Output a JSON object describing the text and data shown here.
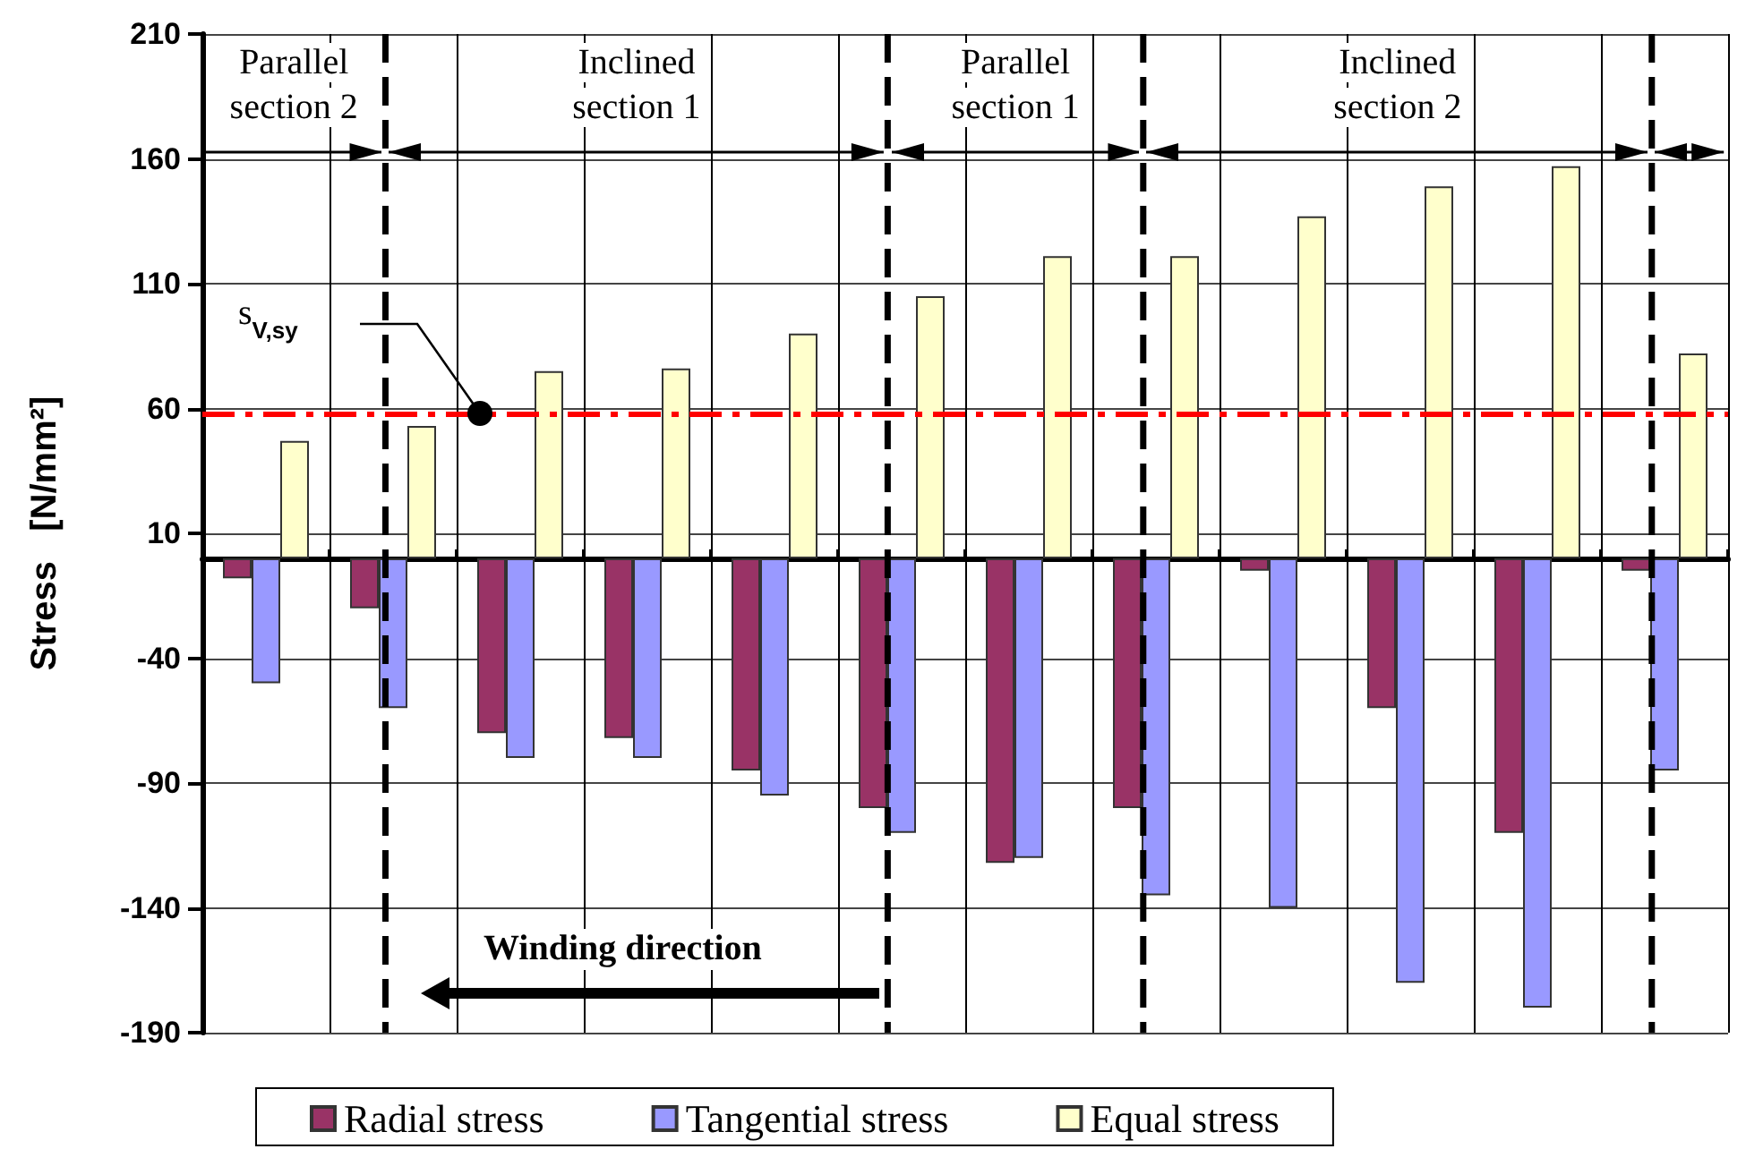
{
  "chart_data": {
    "type": "bar",
    "ylabel": "Stress   [N/mm²]",
    "categories": [
      null,
      null,
      null,
      null,
      null,
      null,
      null,
      null,
      null,
      null,
      null,
      null
    ],
    "ylim": [
      -190,
      210
    ],
    "yticks": [
      -190,
      -140,
      -90,
      -40,
      10,
      60,
      110,
      160,
      210
    ],
    "grid": true,
    "legend": "bottom",
    "series": [
      {
        "name": "Radial stress",
        "color": "#993366",
        "values": [
          -8,
          -20,
          -70,
          -72,
          -85,
          -100,
          -122,
          -100,
          -5,
          -60,
          -110,
          -5
        ]
      },
      {
        "name": "Tangential stress",
        "color": "#9999ff",
        "values": [
          -50,
          -60,
          -80,
          -80,
          -95,
          -110,
          -120,
          -135,
          -140,
          -170,
          -180,
          -85
        ]
      },
      {
        "name": "Equal stress",
        "color": "#ffffcc",
        "values": [
          47,
          53,
          75,
          76,
          90,
          105,
          121,
          121,
          137,
          149,
          157,
          82
        ]
      }
    ],
    "ref_lines": [
      {
        "axis": "y",
        "value": 58,
        "label": "s$_{V,sy}$",
        "color": "#ff0000",
        "line_style": "dashed"
      }
    ],
    "annotations": [
      "Parallel section 2",
      "Inclined section 1",
      "Parallel section 1",
      "Inclined section 2",
      "Winding direction"
    ]
  }
}
